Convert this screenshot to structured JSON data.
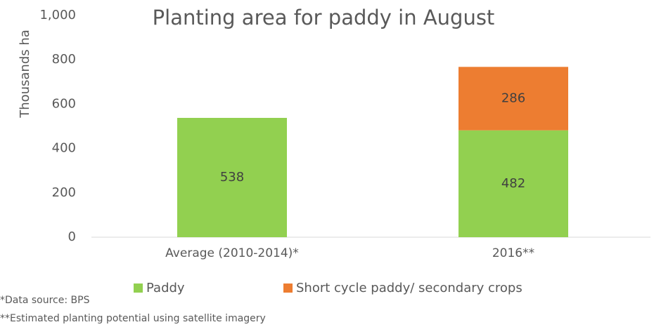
{
  "chart_data": {
    "type": "stacked_bar",
    "title": "Planting area for paddy in August",
    "y_label": "Thousands ha",
    "categories": [
      "Average  (2010-2014)*",
      "2016**"
    ],
    "series": [
      {
        "name": "Paddy",
        "color": "#92d050",
        "values": [
          538,
          482
        ]
      },
      {
        "name": "Short cycle paddy/ secondary crops",
        "color": "#ed7d31",
        "values": [
          null,
          286
        ]
      }
    ],
    "ylim": [
      0,
      1000
    ],
    "yticks": [
      0,
      200,
      400,
      600,
      800,
      {
        "value": 1000,
        "label": "1,000"
      }
    ],
    "grid": false,
    "legend": "bottom",
    "footnotes": [
      "*Data source: BPS",
      "**Estimated planting potential using satellite imagery"
    ]
  }
}
